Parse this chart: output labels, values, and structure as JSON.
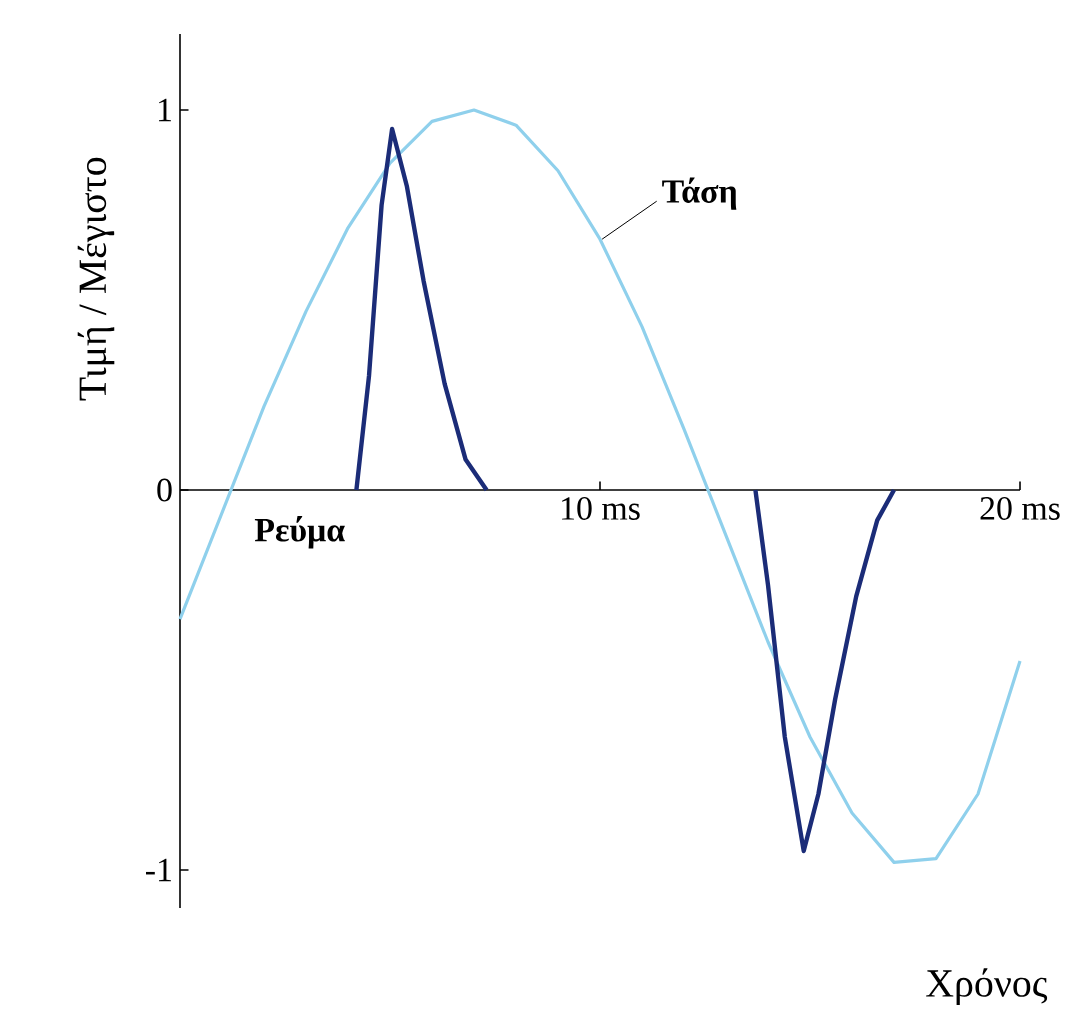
{
  "chart_data": {
    "type": "line",
    "xlabel": "Χρόνος",
    "ylabel": "Τιμή / Μέγιστο",
    "xlim": [
      0,
      20
    ],
    "ylim": [
      -1.1,
      1.2
    ],
    "xticks": [
      {
        "value": 10,
        "label": "10 ms"
      },
      {
        "value": 20,
        "label": "20 ms"
      }
    ],
    "yticks": [
      -1,
      0,
      1
    ],
    "series": [
      {
        "name": "Τάση",
        "color": "#8fd0ec",
        "x": [
          0,
          1,
          2,
          3,
          4,
          5,
          6,
          7,
          8,
          9,
          10,
          11,
          12,
          13,
          14,
          15,
          16,
          17,
          18,
          19,
          20
        ],
        "values": [
          -0.34,
          -0.06,
          0.22,
          0.47,
          0.69,
          0.86,
          0.97,
          1.0,
          0.96,
          0.84,
          0.66,
          0.43,
          0.16,
          -0.12,
          -0.4,
          -0.65,
          -0.85,
          -0.98,
          -0.97,
          -0.8,
          -0.45
        ]
      },
      {
        "name": "Ρεύμα",
        "color": "#1b2c78",
        "x": [
          4.2,
          4.5,
          4.8,
          5.05,
          5.4,
          5.8,
          6.3,
          6.8,
          7.3,
          10,
          13.7,
          14.0,
          14.4,
          14.85,
          15.2,
          15.6,
          16.1,
          16.6,
          17
        ],
        "values": [
          0,
          0.3,
          0.75,
          0.95,
          0.8,
          0.55,
          0.28,
          0.08,
          0,
          null,
          0,
          -0.25,
          -0.65,
          -0.95,
          -0.8,
          -0.55,
          -0.28,
          -0.08,
          0
        ]
      }
    ]
  }
}
